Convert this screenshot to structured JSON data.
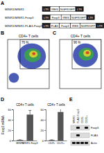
{
  "labels": [
    "A",
    "B",
    "C",
    "D",
    "E"
  ],
  "panel_a": {
    "constructs": [
      {
        "label": "MINR1/MINR1",
        "segments": [
          {
            "text": "LTR",
            "color": "#1a1a1a"
          },
          {
            "text": "IRES",
            "color": "#ffffff"
          },
          {
            "text": "NGFR/GFP",
            "color": "#ffffff"
          },
          {
            "text": "LTR",
            "color": "#1a1a1a"
          }
        ]
      },
      {
        "label": "MINR1/MINR1-Foxp3",
        "segments": [
          {
            "text": "LTR",
            "color": "#1a1a1a"
          },
          {
            "text": "Foxp3",
            "color": "#ffffff"
          },
          {
            "text": "IRES",
            "color": "#ffffff"
          },
          {
            "text": "NGFR/GFP",
            "color": "#ffffff"
          },
          {
            "text": "LTR",
            "color": "#1a1a1a"
          }
        ]
      },
      {
        "label": "MINR1/MINR1-FLAG-Foxp3",
        "segments": [
          {
            "text": "LTR",
            "color": "#1a1a1a"
          },
          {
            "text": "FLAG",
            "color": "#ffffff"
          },
          {
            "text": "Foxp3",
            "color": "#ffffff"
          },
          {
            "text": "IRES",
            "color": "#ffffff"
          },
          {
            "text": "NGFR/GFP",
            "color": "#ffffff"
          },
          {
            "text": "LTR",
            "color": "#1a1a1a"
          }
        ]
      }
    ]
  },
  "flow_plots": [
    {
      "type": "scatter",
      "title": "CD4+ T cells",
      "gate_label": "76 %",
      "xlim": [
        0,
        100
      ],
      "ylim": [
        0,
        100
      ],
      "tick_labels": false,
      "gate": [
        30,
        100,
        40,
        100
      ],
      "populations": [
        {
          "x": 15,
          "y": 22,
          "rx": 12,
          "ry": 10,
          "color": "#2a3fa8"
        },
        {
          "x": 58,
          "y": 66,
          "rx": 34,
          "ry": 26,
          "color": "#2a3fa8"
        },
        {
          "x": 60,
          "y": 68,
          "rx": 20,
          "ry": 14,
          "color": "#3aa845"
        },
        {
          "x": 62,
          "y": 70,
          "rx": 10,
          "ry": 7,
          "color": "#e8d82a"
        },
        {
          "x": 63,
          "y": 71,
          "rx": 4,
          "ry": 3,
          "color": "#d8302a"
        }
      ]
    },
    {
      "type": "scatter",
      "title": "CD4+ T cells",
      "gate_label": "96 %",
      "xlim": [
        0,
        100
      ],
      "ylim": [
        0,
        100
      ],
      "tick_labels": false,
      "gate": [
        30,
        100,
        40,
        100
      ],
      "populations": [
        {
          "x": 62,
          "y": 68,
          "rx": 30,
          "ry": 24,
          "color": "#2a3fa8"
        },
        {
          "x": 64,
          "y": 70,
          "rx": 18,
          "ry": 13,
          "color": "#3aa845"
        },
        {
          "x": 66,
          "y": 72,
          "rx": 9,
          "ry": 7,
          "color": "#e8d82a"
        },
        {
          "x": 67,
          "y": 73,
          "rx": 4,
          "ry": 3,
          "color": "#d8302a"
        }
      ]
    }
  ],
  "chart_data": [
    {
      "type": "bar",
      "title": "CD4+ T cells",
      "y_label": "Foxp3 mRNA",
      "categories": [
        "MINR1",
        "MINR1-Foxp3"
      ],
      "values": [
        1,
        50
      ],
      "errors": [
        0.5,
        8
      ],
      "color": "#555555",
      "ylim": [
        0,
        60
      ],
      "yticks": [
        0,
        20,
        40,
        60
      ]
    },
    {
      "type": "bar",
      "title": "CD4+ T cells",
      "categories": [
        "CD25-",
        "CD25+"
      ],
      "values": [
        1,
        55
      ],
      "errors": [
        0.5,
        10
      ],
      "color": "#555555",
      "ylim": [
        0,
        60
      ],
      "yticks": [
        0,
        20,
        40,
        60
      ]
    }
  ],
  "panel_e": {
    "columns": [
      "MINR1",
      "FLAG-Foxp3",
      "CD25-",
      "CD25+"
    ],
    "rows": [
      "Foxp3",
      "FLAG",
      "Actin"
    ],
    "bands": [
      [
        0,
        1,
        0,
        1
      ],
      [
        0,
        1,
        0,
        0
      ],
      [
        1,
        1,
        1,
        1
      ]
    ]
  }
}
